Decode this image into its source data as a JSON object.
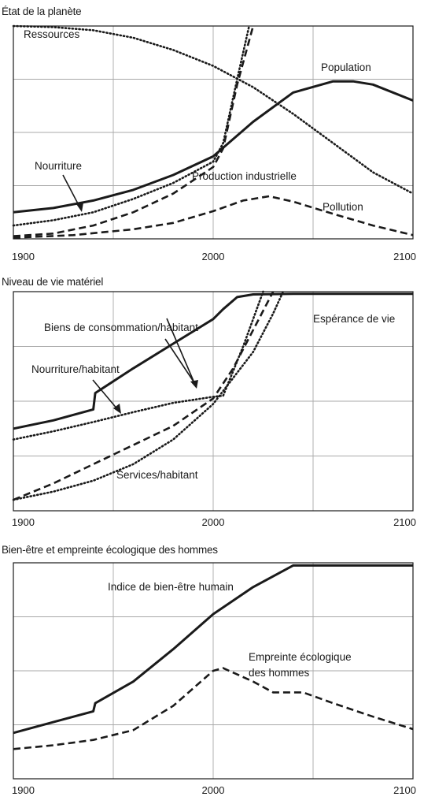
{
  "chart_data": [
    {
      "type": "line",
      "title": "État de la planète",
      "xlim": [
        1900,
        2100
      ],
      "ylim": [
        0,
        4
      ],
      "xticks": [
        1900,
        2000,
        2100
      ],
      "grid": true,
      "series": [
        {
          "name": "Ressources",
          "style": "dotted",
          "x": [
            1900,
            1920,
            1940,
            1960,
            1980,
            2000,
            2020,
            2040,
            2060,
            2080,
            2100
          ],
          "y": [
            4.0,
            3.98,
            3.92,
            3.78,
            3.55,
            3.25,
            2.85,
            2.35,
            1.8,
            1.25,
            0.85
          ]
        },
        {
          "name": "Population",
          "style": "solid",
          "x": [
            1900,
            1920,
            1940,
            1960,
            1980,
            2000,
            2020,
            2040,
            2060,
            2070,
            2080,
            2100
          ],
          "y": [
            0.5,
            0.58,
            0.72,
            0.92,
            1.2,
            1.55,
            2.2,
            2.75,
            2.96,
            2.96,
            2.9,
            2.6
          ]
        },
        {
          "name": "Nourriture",
          "style": "dotted",
          "x": [
            1900,
            1920,
            1940,
            1960,
            1980,
            2000,
            2005,
            2012,
            2018
          ],
          "y": [
            0.25,
            0.35,
            0.5,
            0.75,
            1.05,
            1.45,
            1.8,
            3.0,
            4.0
          ]
        },
        {
          "name": "Production industrielle",
          "style": "dashed",
          "x": [
            1900,
            1920,
            1940,
            1960,
            1980,
            2000,
            2005,
            2012,
            2020
          ],
          "y": [
            0.05,
            0.1,
            0.25,
            0.5,
            0.85,
            1.35,
            1.7,
            2.9,
            4.0
          ]
        },
        {
          "name": "Pollution",
          "style": "dashed",
          "x": [
            1900,
            1930,
            1960,
            1980,
            2000,
            2015,
            2028,
            2040,
            2060,
            2080,
            2100
          ],
          "y": [
            0.02,
            0.07,
            0.18,
            0.3,
            0.52,
            0.72,
            0.8,
            0.7,
            0.47,
            0.25,
            0.07
          ]
        }
      ],
      "annotations": [
        "Ressources",
        "Population",
        "Nourriture",
        "Production industrielle",
        "Pollution"
      ]
    },
    {
      "type": "line",
      "title": "Niveau de vie matériel",
      "xlim": [
        1900,
        2100
      ],
      "ylim": [
        0,
        4
      ],
      "xticks": [
        1900,
        2000,
        2100
      ],
      "grid": true,
      "series": [
        {
          "name": "Espérance de vie",
          "style": "solid",
          "x": [
            1900,
            1920,
            1940,
            1941,
            1960,
            1980,
            2000,
            2005,
            2012,
            2020,
            2040,
            2060,
            2080,
            2100
          ],
          "y": [
            1.5,
            1.65,
            1.85,
            2.15,
            2.6,
            3.05,
            3.5,
            3.68,
            3.9,
            3.95,
            3.96,
            3.96,
            3.96,
            3.96
          ]
        },
        {
          "name": "Biens de consommation/habitant",
          "style": "dashed",
          "x": [
            1900,
            1920,
            1940,
            1960,
            1980,
            2000,
            2010,
            2020,
            2030
          ],
          "y": [
            0.2,
            0.5,
            0.85,
            1.2,
            1.55,
            2.05,
            2.6,
            3.3,
            4.0
          ]
        },
        {
          "name": "Nourriture/habitant",
          "style": "dotted",
          "x": [
            1900,
            1920,
            1940,
            1960,
            1980,
            2000,
            2005,
            2015,
            2025
          ],
          "y": [
            1.3,
            1.45,
            1.62,
            1.8,
            1.97,
            2.08,
            2.1,
            3.0,
            4.0
          ]
        },
        {
          "name": "Services/habitant",
          "style": "dotted",
          "x": [
            1900,
            1920,
            1940,
            1960,
            1980,
            2000,
            2020,
            2030,
            2035
          ],
          "y": [
            0.2,
            0.35,
            0.55,
            0.85,
            1.3,
            1.95,
            2.9,
            3.6,
            4.0
          ]
        }
      ],
      "annotations": [
        "Espérance de vie",
        "Biens de consommation/habitant",
        "Nourriture/habitant",
        "Services/habitant"
      ]
    },
    {
      "type": "line",
      "title": "Bien-être et empreinte écologique des hommes",
      "xlim": [
        1900,
        2100
      ],
      "ylim": [
        0,
        4
      ],
      "xticks": [
        1900,
        2000,
        2100
      ],
      "grid": true,
      "series": [
        {
          "name": "Indice de bien-être humain",
          "style": "solid",
          "x": [
            1900,
            1920,
            1940,
            1941,
            1960,
            1980,
            2000,
            2020,
            2040,
            2060,
            2080,
            2100
          ],
          "y": [
            0.85,
            1.05,
            1.25,
            1.4,
            1.8,
            2.4,
            3.05,
            3.55,
            3.95,
            3.95,
            3.95,
            3.95
          ]
        },
        {
          "name": "Empreinte écologique des hommes",
          "style": "dashed",
          "x": [
            1900,
            1920,
            1940,
            1960,
            1980,
            2000,
            2005,
            2020,
            2030,
            2045,
            2060,
            2080,
            2100
          ],
          "y": [
            0.55,
            0.62,
            0.72,
            0.9,
            1.35,
            2.0,
            2.05,
            1.8,
            1.6,
            1.6,
            1.4,
            1.15,
            0.92
          ]
        }
      ],
      "annotations": [
        "Indice de bien-être humain",
        "Empreinte écologique",
        "des hommes"
      ]
    }
  ]
}
